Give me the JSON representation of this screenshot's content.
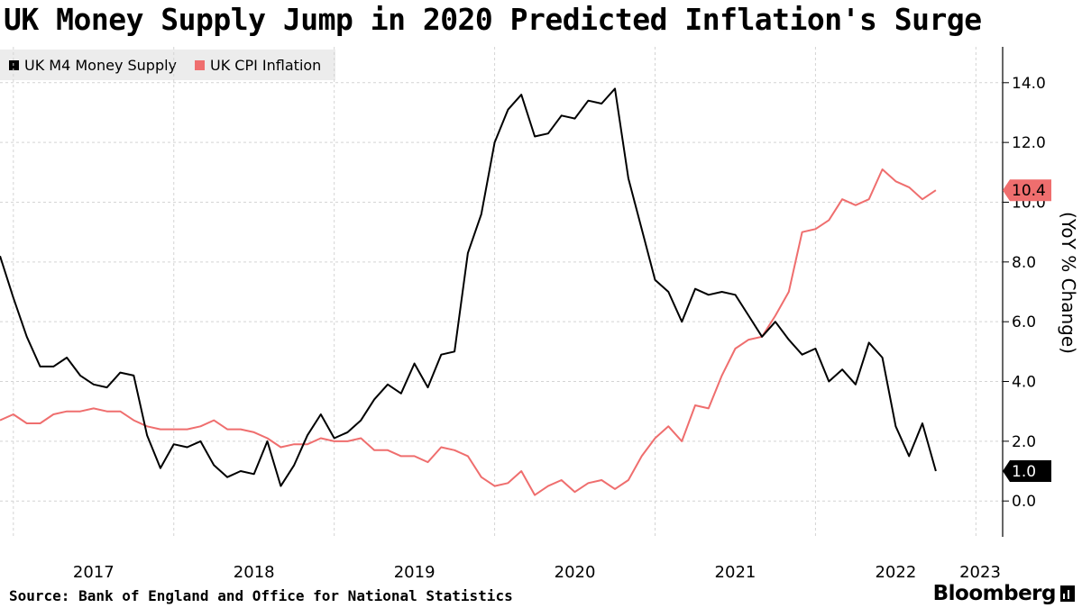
{
  "title": "UK Money Supply Jump in 2020 Predicted Inflation's Surge",
  "source": "Source: Bank of England and Office for National Statistics",
  "brand": "Bloomberg",
  "chart_data": {
    "type": "line",
    "title": "UK Money Supply Jump in 2020 Predicted Inflation's Surge",
    "xlabel": "",
    "ylabel": "(YoY % Change)",
    "x_ticks": [
      "2017",
      "2018",
      "2019",
      "2020",
      "2021",
      "2022",
      "2023"
    ],
    "y_ticks": [
      "0.0",
      "2.0",
      "4.0",
      "6.0",
      "8.0",
      "10.0",
      "12.0",
      "14.0"
    ],
    "ylim": [
      -1.2,
      15.2
    ],
    "xlim": [
      "2016-12-01",
      "2023-03-01"
    ],
    "grid": true,
    "legend_position": "top-left",
    "y_axis_side": "right",
    "series": [
      {
        "name": "UK M4 Money Supply",
        "color": "#000000",
        "last_value_label": "1.0",
        "points": [
          [
            "2016-12",
            8.2
          ],
          [
            "2017-01",
            6.8
          ],
          [
            "2017-02",
            5.5
          ],
          [
            "2017-03",
            4.5
          ],
          [
            "2017-04",
            4.5
          ],
          [
            "2017-05",
            4.8
          ],
          [
            "2017-06",
            4.2
          ],
          [
            "2017-07",
            3.9
          ],
          [
            "2017-08",
            3.8
          ],
          [
            "2017-09",
            4.3
          ],
          [
            "2017-10",
            4.2
          ],
          [
            "2017-11",
            2.2
          ],
          [
            "2017-12",
            1.1
          ],
          [
            "2018-01",
            1.9
          ],
          [
            "2018-02",
            1.8
          ],
          [
            "2018-03",
            2.0
          ],
          [
            "2018-04",
            1.2
          ],
          [
            "2018-05",
            0.8
          ],
          [
            "2018-06",
            1.0
          ],
          [
            "2018-07",
            0.9
          ],
          [
            "2018-08",
            2.0
          ],
          [
            "2018-09",
            0.5
          ],
          [
            "2018-10",
            1.2
          ],
          [
            "2018-11",
            2.2
          ],
          [
            "2018-12",
            2.9
          ],
          [
            "2019-01",
            2.1
          ],
          [
            "2019-02",
            2.3
          ],
          [
            "2019-03",
            2.7
          ],
          [
            "2019-04",
            3.4
          ],
          [
            "2019-05",
            3.9
          ],
          [
            "2019-06",
            3.6
          ],
          [
            "2019-07",
            4.6
          ],
          [
            "2019-08",
            3.8
          ],
          [
            "2019-09",
            4.9
          ],
          [
            "2019-10",
            5.0
          ],
          [
            "2019-11",
            8.3
          ],
          [
            "2019-12",
            9.6
          ],
          [
            "2020-01",
            12.0
          ],
          [
            "2020-02",
            13.1
          ],
          [
            "2020-03",
            13.6
          ],
          [
            "2020-04",
            12.2
          ],
          [
            "2020-05",
            12.3
          ],
          [
            "2020-06",
            12.9
          ],
          [
            "2020-07",
            12.8
          ],
          [
            "2020-08",
            13.4
          ],
          [
            "2020-09",
            13.3
          ],
          [
            "2020-10",
            13.8
          ],
          [
            "2020-11",
            10.8
          ],
          [
            "2020-12",
            9.1
          ],
          [
            "2021-01",
            7.4
          ],
          [
            "2021-02",
            7.0
          ],
          [
            "2021-03",
            6.0
          ],
          [
            "2021-04",
            7.1
          ],
          [
            "2021-05",
            6.9
          ],
          [
            "2021-06",
            7.0
          ],
          [
            "2021-07",
            6.9
          ],
          [
            "2021-08",
            6.2
          ],
          [
            "2021-09",
            5.5
          ],
          [
            "2021-10",
            6.0
          ],
          [
            "2021-11",
            5.4
          ],
          [
            "2021-12",
            4.9
          ],
          [
            "2022-01",
            5.1
          ],
          [
            "2022-02",
            4.0
          ],
          [
            "2022-03",
            4.4
          ],
          [
            "2022-04",
            3.9
          ],
          [
            "2022-05",
            5.3
          ],
          [
            "2022-06",
            4.8
          ],
          [
            "2022-07",
            2.5
          ],
          [
            "2022-08",
            1.5
          ],
          [
            "2022-09",
            2.6
          ],
          [
            "2022-10",
            1.0
          ]
        ]
      },
      {
        "name": "UK CPI Inflation",
        "color": "#ef6e6e",
        "last_value_label": "10.4",
        "points": [
          [
            "2016-12",
            2.7
          ],
          [
            "2017-01",
            2.9
          ],
          [
            "2017-02",
            2.6
          ],
          [
            "2017-03",
            2.6
          ],
          [
            "2017-04",
            2.9
          ],
          [
            "2017-05",
            3.0
          ],
          [
            "2017-06",
            3.0
          ],
          [
            "2017-07",
            3.1
          ],
          [
            "2017-08",
            3.0
          ],
          [
            "2017-09",
            3.0
          ],
          [
            "2017-10",
            2.7
          ],
          [
            "2017-11",
            2.5
          ],
          [
            "2017-12",
            2.4
          ],
          [
            "2018-01",
            2.4
          ],
          [
            "2018-02",
            2.4
          ],
          [
            "2018-03",
            2.5
          ],
          [
            "2018-04",
            2.7
          ],
          [
            "2018-05",
            2.4
          ],
          [
            "2018-06",
            2.4
          ],
          [
            "2018-07",
            2.3
          ],
          [
            "2018-08",
            2.1
          ],
          [
            "2018-09",
            1.8
          ],
          [
            "2018-10",
            1.9
          ],
          [
            "2018-11",
            1.9
          ],
          [
            "2018-12",
            2.1
          ],
          [
            "2019-01",
            2.0
          ],
          [
            "2019-02",
            2.0
          ],
          [
            "2019-03",
            2.1
          ],
          [
            "2019-04",
            1.7
          ],
          [
            "2019-05",
            1.7
          ],
          [
            "2019-06",
            1.5
          ],
          [
            "2019-07",
            1.5
          ],
          [
            "2019-08",
            1.3
          ],
          [
            "2019-09",
            1.8
          ],
          [
            "2019-10",
            1.7
          ],
          [
            "2019-11",
            1.5
          ],
          [
            "2019-12",
            0.8
          ],
          [
            "2020-01",
            0.5
          ],
          [
            "2020-02",
            0.6
          ],
          [
            "2020-03",
            1.0
          ],
          [
            "2020-04",
            0.2
          ],
          [
            "2020-05",
            0.5
          ],
          [
            "2020-06",
            0.7
          ],
          [
            "2020-07",
            0.3
          ],
          [
            "2020-08",
            0.6
          ],
          [
            "2020-09",
            0.7
          ],
          [
            "2020-10",
            0.4
          ],
          [
            "2020-11",
            0.7
          ],
          [
            "2020-12",
            1.5
          ],
          [
            "2021-01",
            2.1
          ],
          [
            "2021-02",
            2.5
          ],
          [
            "2021-03",
            2.0
          ],
          [
            "2021-04",
            3.2
          ],
          [
            "2021-05",
            3.1
          ],
          [
            "2021-06",
            4.2
          ],
          [
            "2021-07",
            5.1
          ],
          [
            "2021-08",
            5.4
          ],
          [
            "2021-09",
            5.5
          ],
          [
            "2021-10",
            6.2
          ],
          [
            "2021-11",
            7.0
          ],
          [
            "2021-12",
            9.0
          ],
          [
            "2022-01",
            9.1
          ],
          [
            "2022-02",
            9.4
          ],
          [
            "2022-03",
            10.1
          ],
          [
            "2022-04",
            9.9
          ],
          [
            "2022-05",
            10.1
          ],
          [
            "2022-06",
            11.1
          ],
          [
            "2022-07",
            10.7
          ],
          [
            "2022-08",
            10.5
          ],
          [
            "2022-09",
            10.1
          ],
          [
            "2022-10",
            10.4
          ]
        ]
      }
    ]
  }
}
